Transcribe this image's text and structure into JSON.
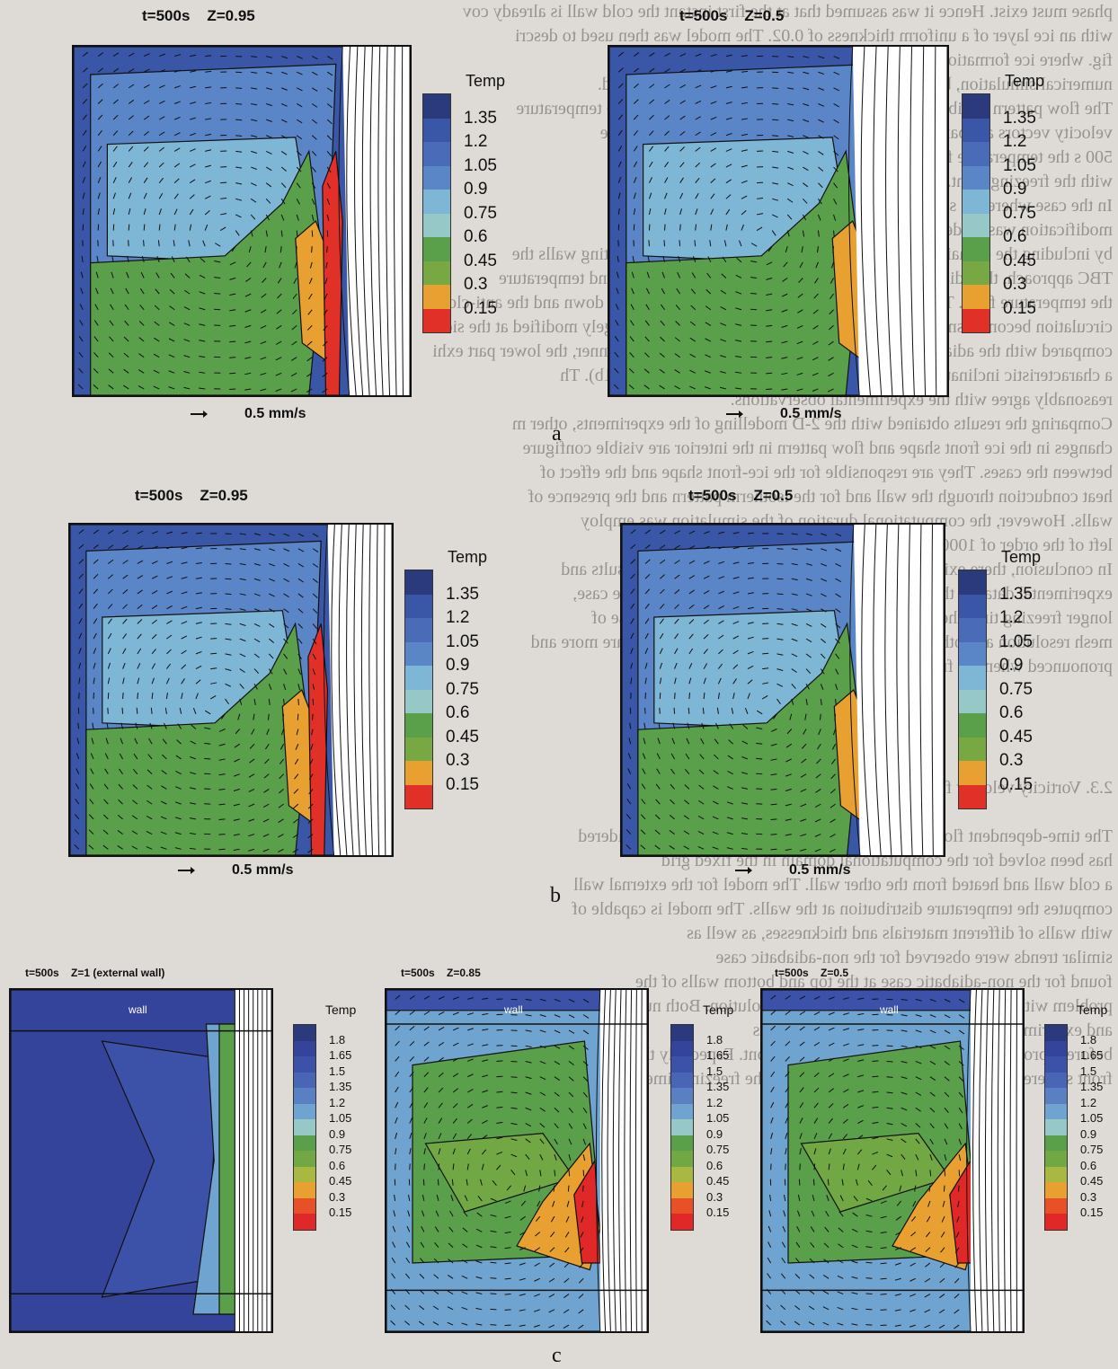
{
  "background_text": [
    "phase must exist. Hence it was assumed that at the first instant the cold wall is already cov",
    "with an ice layer of a uniform thickness of 0.02. The model was then used to descri",
    "fig. where ice formation near the cold wall is shown for the ICT",
    "numerical simulation, but the thermal boundary conditions are retained.",
    "The flow pattern exhibits a structure in which warm fluid rises and the temperature",
    "velocity vectors are parallel to the vertical wall near the end of the time",
    "500 s the temperature field and the flow pattern is presented in the fig.",
    "with the freezing front.",
    "In the case where the side walls are heat conducting, one",
    "modification was made by introducing air (Fig. 10b) and (Fig. 10b)",
    "by including the domain of the computational domain. For the conducting walls the",
    "TBC approach, the adiabatic case generally moves the freezing front and temperature",
    "the temperature field. The most advanced point of the interface moves down and the anti-clock",
    "circulation becomes smaller. The flow and temperature pattern are largely modified at the side",
    "compared with the adiabatic case. The upper part of the ice layer is thinner, the lower part exhi",
    "a characteristic inclination before attaining the bottom wall (see fig. 11b). Th",
    "reasonably agree with the experimental observations.",
    "Comparing the results obtained with the 2-D modelling of the experiments, other m",
    "changes in the ice front shape and flow pattern in the interior are visible configure",
    "between the cases. They are responsible for the ice-front shape and the effect of",
    "heat conduction through the wall and for the isotherm pattern and the presence of",
    "walls. However, the computational duration of the simulation was employ",
    "left of the order of 1000 s.",
    "In conclusion, there exists good agreement between the modelled results and",
    "experimental data for the early freezing process (for the freezing time case,",
    "longer freezing time the discrepancies in the modelling result because of",
    "mesh resolution and other unmodelled discrepancies [11] and those are more and",
    "pronounced when the freezing time exceeds 500 s.",
    "",
    "",
    "",
    "",
    "2.3. Vorticity velocity fixed grid numerical model",
    "",
    "The time-dependent flow in the rectangular enclosure has been considered",
    "has been solved for the computational domain in the fixed grid",
    "a cold wall and heated from the other wall. The model for the external wall",
    "computes the temperature distribution at the walls. The model is capable of",
    "with walls of different materials and thicknesses, as well as",
    "similar trends were observed for the non-adiabatic case",
    "found for the non-adiabatic case at the top and bottom walls of the",
    "problem with the 3-dimensional domain for the solution. Both numerical results",
    "and experiments are very close to the experiments",
    "before it progressively developed the freezing front. Especially the upper part of the",
    "front suffered evident errors in modelling when the freezing time exceeds 1000 s. In the experime"
  ],
  "sublabels": {
    "a": "a",
    "b": "b",
    "c": "c"
  },
  "legend_large": {
    "title": "Temp",
    "levels": [
      "1.35",
      "1.2",
      "1.05",
      "0.9",
      "0.75",
      "0.6",
      "0.45",
      "0.3",
      "0.15"
    ],
    "colors": [
      "#2a3a7c",
      "#3a56a6",
      "#4a6cb8",
      "#5a86c8",
      "#7eb6d6",
      "#96c8c8",
      "#5aa04a",
      "#78a844",
      "#e8a030",
      "#e03028"
    ]
  },
  "legend_small": {
    "title": "Temp",
    "levels": [
      "1.8",
      "1.65",
      "1.5",
      "1.35",
      "1.2",
      "1.05",
      "0.9",
      "0.75",
      "0.6",
      "0.45",
      "0.3",
      "0.15"
    ],
    "colors": [
      "#2a3a7c",
      "#34449a",
      "#3c52a8",
      "#4866b4",
      "#5a80c4",
      "#70a4d0",
      "#96c8c8",
      "#5aa04a",
      "#72a844",
      "#a8b840",
      "#e8a030",
      "#e85028",
      "#e02828"
    ]
  },
  "panels": [
    {
      "id": "a1",
      "title_t": "t=500s",
      "title_z": "Z=0.95",
      "velocity": "0.5 mm/s"
    },
    {
      "id": "a2",
      "title_t": "t=500s",
      "title_z": "Z=0.5",
      "velocity": "0.5 mm/s"
    },
    {
      "id": "b1",
      "title_t": "t=500s",
      "title_z": "Z=0.95",
      "velocity": "0.5 mm/s"
    },
    {
      "id": "b2",
      "title_t": "t=500s",
      "title_z": "Z=0.5",
      "velocity": "0.5 mm/s"
    },
    {
      "id": "c1",
      "title_t": "t=500s",
      "title_z": "Z=1 (external wall)",
      "wall": "wall"
    },
    {
      "id": "c2",
      "title_t": "t=500s",
      "title_z": "Z=0.85",
      "wall": "wall"
    },
    {
      "id": "c3",
      "title_t": "t=500s",
      "title_z": "Z=0.5",
      "wall": "wall"
    }
  ]
}
